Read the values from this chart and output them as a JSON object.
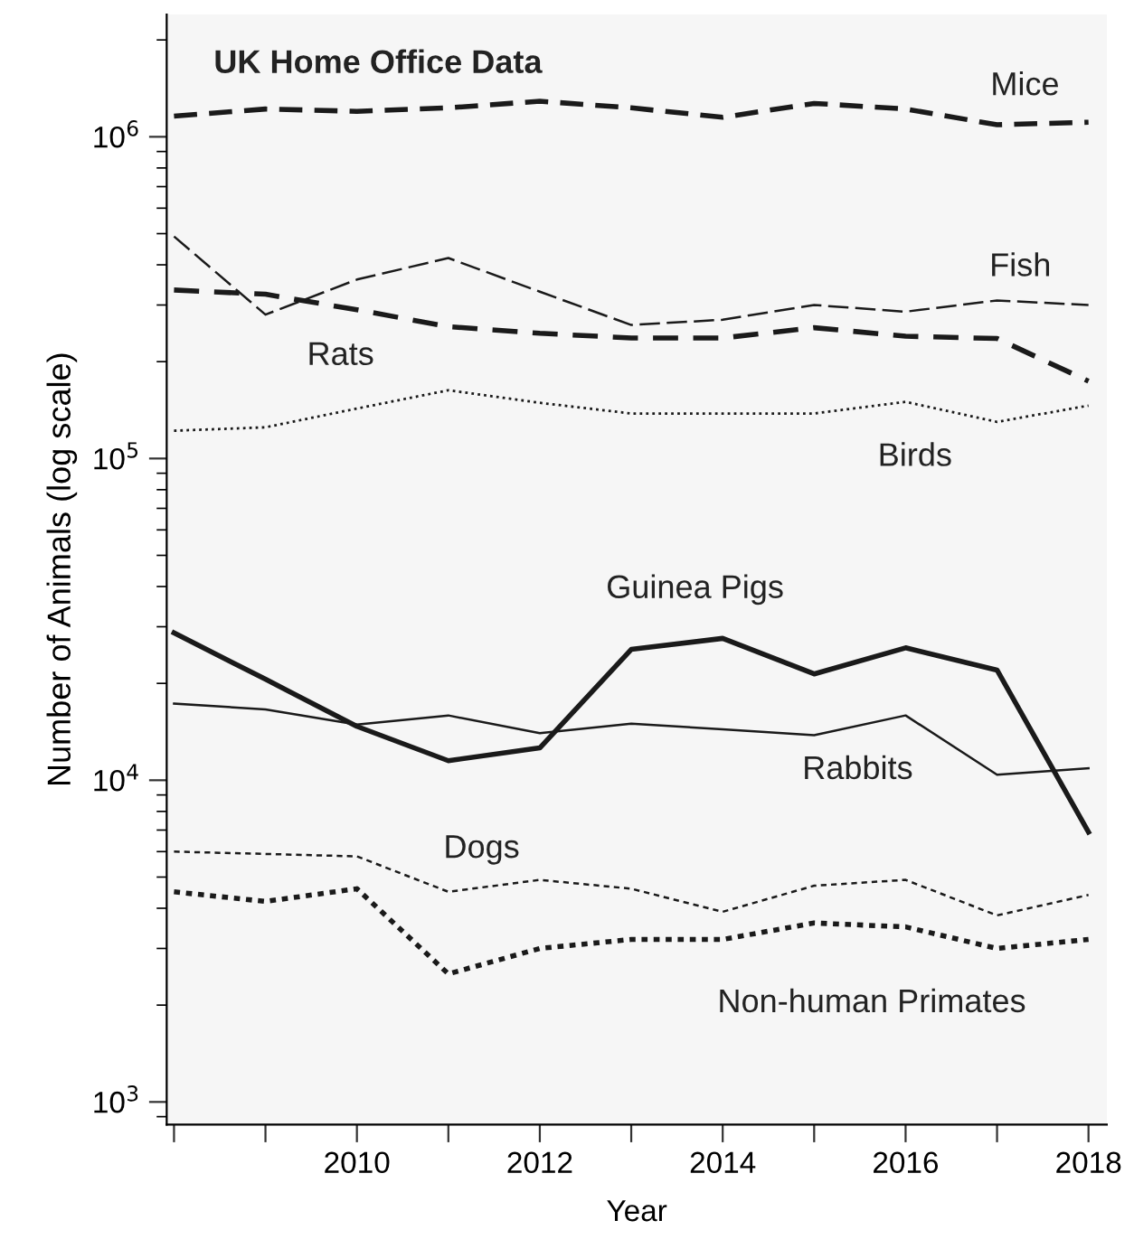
{
  "chart_data": {
    "type": "line",
    "title": "UK Home Office Data",
    "xlabel": "Year",
    "ylabel": "Number of Animals (log scale)",
    "x": [
      2008,
      2009,
      2010,
      2011,
      2012,
      2013,
      2014,
      2015,
      2016,
      2017,
      2018
    ],
    "series": [
      {
        "name": "Mice",
        "color": "#1a1a1a",
        "line_style": "dashed",
        "values": [
          1160000,
          1220000,
          1200000,
          1230000,
          1290000,
          1230000,
          1150000,
          1270000,
          1220000,
          1090000,
          1110000
        ]
      },
      {
        "name": "Fish",
        "color": "#1a1a1a",
        "line_style": "dashed",
        "values": [
          490000,
          280000,
          360000,
          420000,
          330000,
          260000,
          270000,
          300000,
          286000,
          310000,
          300000
        ]
      },
      {
        "name": "Rats",
        "color": "#1a1a1a",
        "line_style": "dashed",
        "values": [
          334000,
          324000,
          290000,
          257000,
          245000,
          237000,
          237000,
          255000,
          240000,
          236000,
          174000
        ]
      },
      {
        "name": "Birds",
        "color": "#1a1a1a",
        "line_style": "dotted",
        "values": [
          122000,
          125000,
          143000,
          163000,
          149000,
          138000,
          138000,
          138000,
          150000,
          130000,
          146000
        ]
      },
      {
        "name": "Guinea Pigs",
        "color": "#1a1a1a",
        "line_style": "solid",
        "values": [
          28700,
          20600,
          14700,
          11500,
          12600,
          25500,
          27600,
          21400,
          25800,
          22000,
          6900
        ]
      },
      {
        "name": "Rabbits",
        "color": "#1a1a1a",
        "line_style": "solid",
        "values": [
          17300,
          16600,
          14900,
          15900,
          14000,
          15000,
          14400,
          13800,
          15900,
          10400,
          10900
        ]
      },
      {
        "name": "Dogs",
        "color": "#1a1a1a",
        "line_style": "dotted",
        "values": [
          6000,
          5900,
          5800,
          4500,
          4900,
          4600,
          3900,
          4700,
          4900,
          3800,
          4400
        ]
      },
      {
        "name": "Non-human Primates",
        "color": "#1a1a1a",
        "line_style": "dotted",
        "values": [
          4500,
          4200,
          4600,
          2500,
          3000,
          3200,
          3200,
          3600,
          3500,
          3000,
          3200
        ]
      }
    ],
    "log": "y",
    "xlim": [
      2007.92,
      2018.2
    ],
    "ylim": [
      850,
      2400000
    ],
    "xticks": [
      {
        "value": 2008,
        "label": null
      },
      {
        "value": 2009,
        "label": null
      },
      2010,
      {
        "value": 2011,
        "label": null
      },
      2012,
      {
        "value": 2013,
        "label": null
      },
      2014,
      {
        "value": 2015,
        "label": null
      },
      2016,
      {
        "value": 2017,
        "label": null
      },
      2018
    ],
    "yticks": [
      {
        "value": 1000,
        "label": "10$^{3}$"
      },
      {
        "value": 10000,
        "label": "10$^{4}$"
      },
      {
        "value": 100000,
        "label": "10$^{5}$"
      },
      {
        "value": 1000000,
        "label": "10$^{6}$"
      }
    ],
    "grid": false,
    "legend": false,
    "marker": "none"
  }
}
